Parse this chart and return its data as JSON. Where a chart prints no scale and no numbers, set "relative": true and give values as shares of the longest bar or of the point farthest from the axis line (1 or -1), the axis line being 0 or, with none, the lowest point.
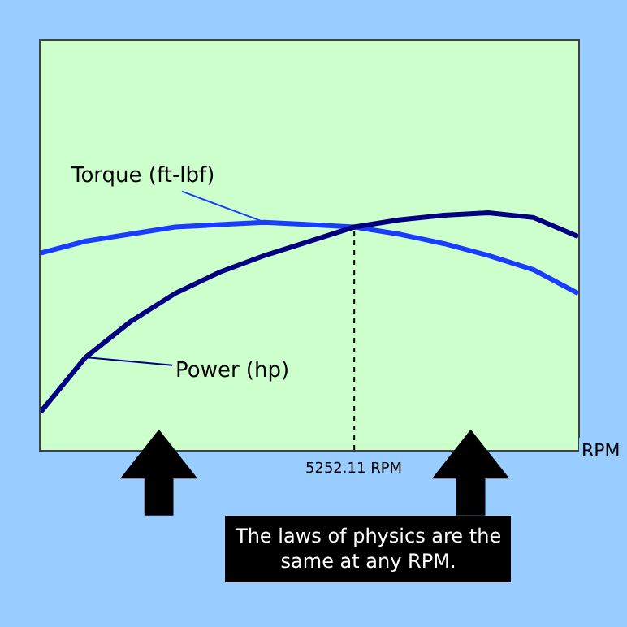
{
  "chart_data": {
    "type": "line",
    "relative": true,
    "xlabel": "RPM",
    "categories": [
      null,
      null,
      null,
      null,
      null,
      null,
      null,
      null,
      null,
      null,
      null,
      null,
      null
    ],
    "series": [
      {
        "name": "Torque (ft-lbf)",
        "color": "#1a3cff",
        "values": [
          0.83,
          0.88,
          0.91,
          0.94,
          0.95,
          0.96,
          0.95,
          0.94,
          0.91,
          0.87,
          0.82,
          0.76,
          0.66
        ]
      },
      {
        "name": "Power (hp)",
        "color": "#000080",
        "values": [
          0.16,
          0.39,
          0.54,
          0.66,
          0.75,
          0.82,
          0.88,
          0.94,
          0.97,
          0.99,
          1.0,
          0.98,
          0.9
        ]
      }
    ],
    "annotations": [
      "5252.11 RPM",
      "The laws of physics are the same at any RPM."
    ]
  }
}
